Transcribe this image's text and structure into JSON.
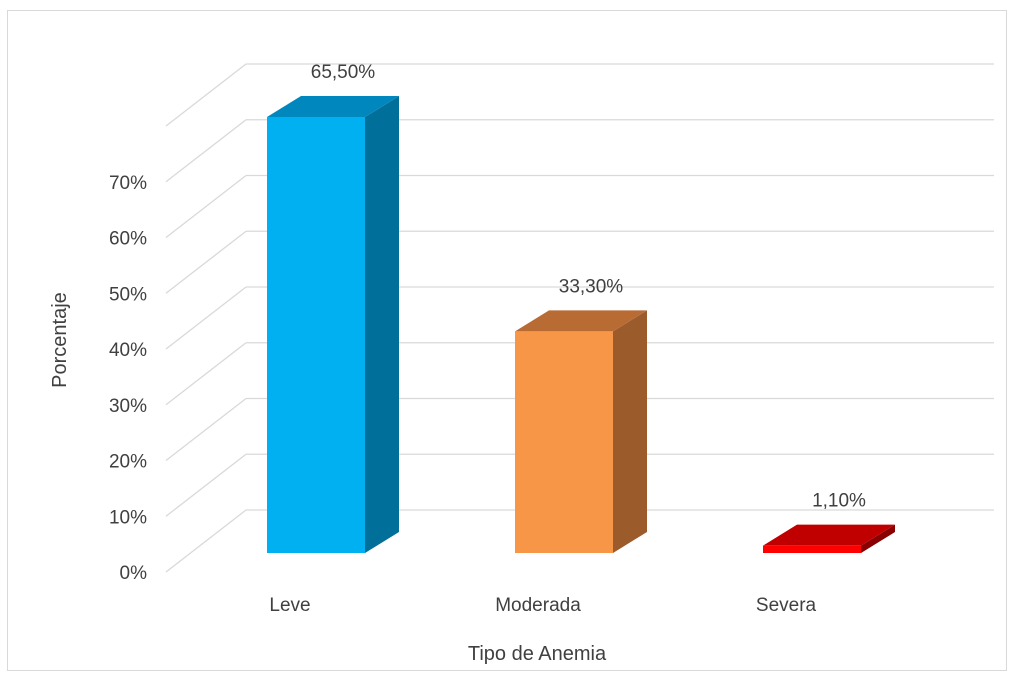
{
  "chart_data": {
    "type": "bar",
    "three_d": true,
    "title": "",
    "xlabel": "Tipo de Anemia",
    "ylabel": "Porcentaje",
    "categories": [
      "Leve",
      "Moderada",
      "Severa"
    ],
    "values": [
      65.5,
      33.3,
      1.1
    ],
    "data_labels": [
      "65,50%",
      "33,30%",
      "1,10%"
    ],
    "ylim": [
      0,
      70
    ],
    "yticks": [
      0,
      10,
      20,
      30,
      40,
      50,
      60,
      70
    ],
    "ytick_labels": [
      "0%",
      "10%",
      "20%",
      "30%",
      "40%",
      "50%",
      "60%",
      "70%"
    ],
    "grid": true,
    "legend": "none",
    "colors": [
      {
        "front": "#00b0f0",
        "side": "#006f9a",
        "top": "#0087bd"
      },
      {
        "front": "#f79646",
        "side": "#9c5b2b",
        "top": "#b96b34"
      },
      {
        "front": "#ff0000",
        "side": "#8a0000",
        "top": "#c00000"
      }
    ],
    "gridline_color": "#d9d9d9",
    "text_color": "#404040"
  }
}
